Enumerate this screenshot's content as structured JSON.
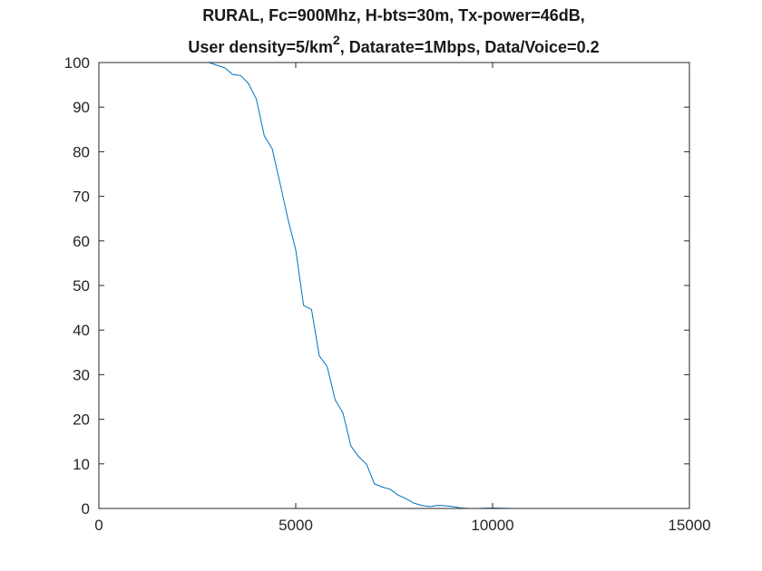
{
  "chart_data": {
    "type": "line",
    "title_line1": "RURAL, Fc=900Mhz, H-bts=30m, Tx-power=46dB,",
    "title_line2": {
      "before_sup": "User density=5/km",
      "sup": "2",
      "after_sup": ", Datarate=1Mbps, Data/Voice=0.2"
    },
    "xlabel": "",
    "ylabel": "",
    "xlim": [
      0,
      15000
    ],
    "ylim": [
      0,
      100
    ],
    "xticks": [
      0,
      5000,
      10000,
      15000
    ],
    "xtick_labels": [
      "0",
      "5000",
      "10000",
      "15000"
    ],
    "yticks": [
      0,
      10,
      20,
      30,
      40,
      50,
      60,
      70,
      80,
      90,
      100
    ],
    "ytick_labels": [
      "0",
      "10",
      "20",
      "30",
      "40",
      "50",
      "60",
      "70",
      "80",
      "90",
      "100"
    ],
    "grid": false,
    "line_color": "#0072bd",
    "series": [
      {
        "x": [
          800,
          1000,
          1500,
          2000,
          2500,
          2800,
          3000,
          3200,
          3400,
          3600,
          3800,
          4000,
          4200,
          4400,
          4600,
          4800,
          5000,
          5200,
          5400,
          5600,
          5800,
          6000,
          6200,
          6400,
          6600,
          6800,
          7000,
          7200,
          7400,
          7600,
          7800,
          8000,
          8200,
          8400,
          8600,
          8800,
          9000,
          9200,
          9400,
          9600,
          10000,
          10500,
          11000,
          12000,
          13000,
          14000,
          15000
        ],
        "y": [
          100,
          100,
          100,
          100,
          100,
          100,
          99.4,
          98.8,
          97.3,
          97.1,
          95.3,
          91.8,
          83.6,
          80.7,
          73.0,
          65.0,
          58.0,
          45.5,
          44.6,
          34.2,
          31.8,
          24.4,
          21.4,
          14.0,
          11.6,
          9.9,
          5.5,
          4.8,
          4.3,
          3.0,
          2.2,
          1.2,
          0.7,
          0.4,
          0.7,
          0.6,
          0.4,
          0.1,
          0.0,
          0.0,
          0.1,
          0.0,
          0.0,
          0.0,
          0.0,
          0.0,
          0.0
        ]
      }
    ]
  }
}
